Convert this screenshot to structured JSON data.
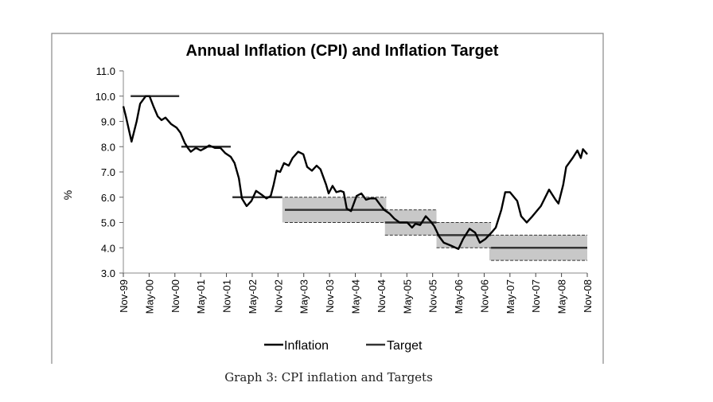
{
  "chart_data": {
    "type": "line",
    "title": "Annual Inflation (CPI) and Inflation Target",
    "ylabel": "%",
    "xlabel": "",
    "ylim": [
      3.0,
      11.0
    ],
    "yticks": [
      "3.0",
      "4.0",
      "5.0",
      "6.0",
      "7.0",
      "8.0",
      "9.0",
      "10.0",
      "11.0"
    ],
    "x_unit": "months since Nov-99",
    "xlim": [
      0,
      108
    ],
    "xticks": [
      "Nov-99",
      "May-00",
      "Nov-00",
      "May-01",
      "Nov-01",
      "May-02",
      "Nov-02",
      "May-03",
      "Nov-03",
      "May-04",
      "Nov-04",
      "May-05",
      "Nov-05",
      "May-06",
      "Nov-06",
      "May-07",
      "Nov-07",
      "May-08",
      "Nov-08"
    ],
    "grid": false,
    "legend": {
      "placement": "bottom",
      "entries": [
        "Inflation",
        "Target"
      ]
    },
    "series": [
      {
        "name": "Inflation",
        "x": [
          0,
          0.6,
          1.9,
          3.1,
          3.9,
          5.2,
          6.1,
          7.0,
          8.0,
          8.9,
          9.8,
          11.1,
          12.4,
          13.3,
          14.3,
          15.0,
          15.7,
          16.9,
          18.0,
          19.1,
          20.0,
          21.3,
          22.6,
          23.7,
          25.0,
          25.9,
          26.9,
          27.6,
          28.7,
          29.8,
          30.9,
          32.2,
          33.3,
          34.3,
          35.0,
          35.7,
          36.5,
          37.4,
          38.5,
          39.4,
          40.7,
          41.9,
          42.8,
          43.9,
          45.0,
          45.9,
          47.2,
          47.8,
          48.7,
          49.6,
          50.6,
          51.3,
          52.0,
          53.0,
          54.3,
          55.4,
          56.5,
          57.4,
          58.7,
          59.8,
          60.7,
          62.0,
          63.1,
          64.3,
          66.1,
          67.2,
          68.0,
          69.1,
          70.4,
          71.5,
          72.4,
          73.5,
          74.6,
          76.1,
          78.0,
          79.1,
          80.6,
          81.9,
          83.0,
          84.3,
          85.7,
          86.7,
          88.0,
          88.9,
          90.0,
          91.7,
          92.6,
          93.9,
          95.0,
          97.2,
          99.1,
          100.6,
          101.3,
          102.4,
          103.1,
          104.6,
          105.7,
          106.5,
          107.0,
          108
        ],
        "values": [
          9.6,
          9.2,
          8.2,
          9.0,
          9.7,
          10.0,
          10.0,
          9.6,
          9.2,
          9.05,
          9.15,
          8.9,
          8.75,
          8.55,
          8.15,
          7.95,
          7.8,
          7.95,
          7.85,
          7.95,
          8.05,
          7.95,
          7.95,
          7.75,
          7.6,
          7.35,
          6.75,
          5.95,
          5.65,
          5.85,
          6.25,
          6.1,
          5.95,
          6.05,
          6.5,
          7.05,
          7.0,
          7.35,
          7.25,
          7.55,
          7.8,
          7.7,
          7.2,
          7.05,
          7.25,
          7.1,
          6.5,
          6.15,
          6.45,
          6.2,
          6.25,
          6.2,
          5.55,
          5.45,
          6.05,
          6.15,
          5.9,
          5.95,
          5.95,
          5.7,
          5.5,
          5.35,
          5.15,
          5.0,
          5.0,
          4.8,
          4.95,
          4.9,
          5.25,
          5.05,
          4.85,
          4.45,
          4.2,
          4.1,
          3.95,
          4.35,
          4.75,
          4.6,
          4.2,
          4.35,
          4.6,
          4.8,
          5.5,
          6.2,
          6.2,
          5.85,
          5.25,
          5.0,
          5.2,
          5.65,
          6.3,
          5.9,
          5.75,
          6.5,
          7.2,
          7.55,
          7.85,
          7.55,
          7.9,
          7.7
        ]
      },
      {
        "name": "Target",
        "segments": [
          {
            "start": 1.7,
            "end": 13.0,
            "value": 10.0
          },
          {
            "start": 13.5,
            "end": 25.0,
            "value": 8.0
          },
          {
            "start": 25.4,
            "end": 37.0,
            "value": 6.0
          },
          {
            "start": 37.6,
            "end": 61.2,
            "value": 5.5,
            "band": [
              5.0,
              6.0
            ],
            "band_start": 37.0
          },
          {
            "start": 60.9,
            "end": 72.9,
            "value": 5.0,
            "band": [
              4.5,
              5.5
            ],
            "band_start": 60.9
          },
          {
            "start": 72.9,
            "end": 85.6,
            "value": 4.5,
            "band": [
              4.0,
              5.0
            ],
            "band_start": 72.9
          },
          {
            "start": 85.6,
            "end": 108,
            "value": 4.0,
            "band": [
              3.5,
              4.5
            ],
            "band_start": 85.2
          }
        ]
      }
    ],
    "colors": {
      "inflation": "#000000",
      "target": "#333333",
      "band": "#c8c8c8"
    }
  },
  "caption": "Graph 3: CPI inflation and Targets"
}
